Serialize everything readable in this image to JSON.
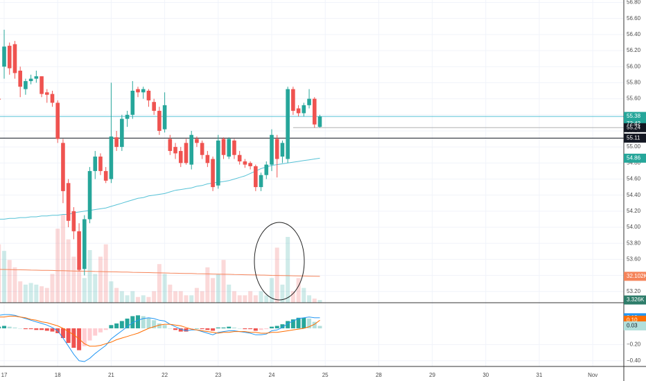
{
  "chart_data": [
    {
      "type": "candlestick",
      "xlim": [
        0,
        117
      ],
      "xticks": [
        {
          "value": 1,
          "label": "17"
        },
        {
          "value": 11,
          "label": "18"
        },
        {
          "value": 21,
          "label": "21"
        },
        {
          "value": 31,
          "label": "22"
        },
        {
          "value": 41,
          "label": "23"
        },
        {
          "value": 51,
          "label": "24"
        },
        {
          "value": 61,
          "label": "25"
        },
        {
          "value": 71,
          "label": "28"
        },
        {
          "value": 81,
          "label": "29"
        },
        {
          "value": 91,
          "label": "30"
        },
        {
          "value": 101,
          "label": "31"
        },
        {
          "value": 111,
          "label": "Nov"
        }
      ],
      "ylim": [
        53.06,
        56.83
      ],
      "yticks": [
        {
          "value": 56.8,
          "label": "56.80"
        },
        {
          "value": 56.6,
          "label": "56.60"
        },
        {
          "value": 56.4,
          "label": "56.40"
        },
        {
          "value": 56.2,
          "label": "56.20"
        },
        {
          "value": 56,
          "label": "56.00"
        },
        {
          "value": 55.8,
          "label": "55.80"
        },
        {
          "value": 55.6,
          "label": "55.60"
        },
        {
          "value": 55.4,
          "label": "55.40"
        },
        {
          "value": 55.2,
          "label": "55.20"
        },
        {
          "value": 55,
          "label": "55.00"
        },
        {
          "value": 54.8,
          "label": "54.80"
        },
        {
          "value": 54.6,
          "label": "54.60"
        },
        {
          "value": 54.4,
          "label": "54.40"
        },
        {
          "value": 54.2,
          "label": "54.20"
        },
        {
          "value": 54,
          "label": "54.00"
        },
        {
          "value": 53.8,
          "label": "53.80"
        },
        {
          "value": 53.6,
          "label": "53.60"
        },
        {
          "value": 53.4,
          "label": "53.40"
        },
        {
          "value": 53.2,
          "label": "53.20"
        }
      ],
      "grid": true,
      "up_color": "#26a69a",
      "down_color": "#ef5350",
      "open": [
        55.6,
        56.0,
        56.26,
        56.28,
        55.95,
        55.72,
        55.82,
        55.85,
        55.88,
        55.68,
        55.66,
        55.55,
        55.05,
        54.55,
        54.2,
        53.95,
        53.48,
        54.1,
        54.7,
        54.88,
        54.7,
        54.6,
        55.12,
        55.0,
        55.35,
        55.4,
        55.72,
        55.68,
        55.7,
        55.56,
        55.45,
        55.22,
        55.1,
        55.0,
        54.95,
        55.05,
        54.78,
        55.1,
        55.05,
        54.9,
        54.85,
        54.52,
        55.1,
        54.88,
        55.08,
        54.9,
        54.82,
        54.8,
        54.76,
        54.5,
        54.65,
        54.78,
        55.1,
        54.88,
        54.85,
        55.72,
        55.48,
        55.42,
        55.52,
        55.6,
        55.25
      ],
      "high": [
        55.62,
        56.46,
        56.3,
        56.32,
        56.0,
        55.85,
        55.9,
        55.95,
        55.88,
        55.72,
        55.7,
        55.58,
        55.1,
        54.6,
        54.25,
        54.05,
        54.15,
        54.75,
        54.95,
        54.92,
        54.75,
        55.8,
        55.2,
        55.4,
        55.45,
        55.82,
        55.75,
        55.75,
        55.72,
        55.6,
        55.5,
        55.68,
        55.15,
        55.05,
        55.0,
        55.1,
        55.2,
        55.13,
        55.08,
        54.95,
        54.88,
        55.15,
        55.12,
        55.12,
        55.1,
        54.95,
        54.85,
        54.82,
        54.78,
        54.68,
        54.82,
        55.22,
        55.15,
        55.08,
        55.75,
        55.75,
        55.52,
        55.55,
        55.72,
        55.62,
        55.4
      ],
      "low": [
        55.58,
        55.85,
        55.9,
        55.85,
        55.62,
        55.65,
        55.78,
        55.8,
        55.62,
        55.55,
        55.5,
        55.05,
        54.3,
        54.0,
        53.85,
        53.45,
        53.4,
        54.05,
        54.6,
        54.65,
        54.55,
        54.55,
        54.95,
        54.95,
        55.25,
        55.35,
        55.62,
        55.6,
        55.5,
        55.4,
        55.15,
        55.18,
        54.9,
        54.85,
        54.75,
        54.78,
        54.72,
        55.0,
        54.85,
        54.75,
        54.45,
        54.48,
        54.85,
        54.85,
        54.85,
        54.78,
        54.74,
        54.72,
        54.45,
        54.45,
        54.6,
        54.7,
        54.62,
        54.8,
        54.8,
        55.4,
        55.38,
        55.38,
        55.48,
        55.24,
        55.24
      ],
      "close": [
        55.59,
        56.25,
        55.98,
        55.92,
        55.75,
        55.82,
        55.85,
        55.88,
        55.66,
        55.65,
        55.55,
        55.1,
        54.45,
        54.08,
        53.95,
        53.47,
        54.1,
        54.7,
        54.88,
        54.7,
        54.58,
        55.13,
        55.0,
        55.35,
        55.4,
        55.7,
        55.68,
        55.72,
        55.58,
        55.45,
        55.2,
        55.52,
        54.95,
        54.92,
        54.8,
        54.8,
        55.15,
        55.05,
        54.9,
        54.8,
        54.5,
        55.08,
        54.9,
        55.1,
        54.9,
        54.82,
        54.78,
        54.76,
        54.5,
        54.65,
        54.78,
        55.15,
        54.85,
        55.05,
        55.72,
        55.45,
        55.42,
        55.52,
        55.6,
        55.28,
        55.38
      ],
      "ma": {
        "color": "#56c2d6",
        "values": [
          54.1,
          54.1,
          54.11,
          54.11,
          54.12,
          54.12,
          54.13,
          54.13,
          54.14,
          54.14,
          54.15,
          54.15,
          54.16,
          54.16,
          54.18,
          54.19,
          54.2,
          54.21,
          54.22,
          54.23,
          54.24,
          54.26,
          54.28,
          54.3,
          54.32,
          54.34,
          54.36,
          54.37,
          54.39,
          54.4,
          54.41,
          54.42,
          54.44,
          54.46,
          54.47,
          54.48,
          54.49,
          54.51,
          54.52,
          54.54,
          54.55,
          54.56,
          54.57,
          54.58,
          54.6,
          54.62,
          54.64,
          54.67,
          54.7,
          54.73,
          54.75,
          54.77,
          54.78,
          54.79,
          54.8,
          54.81,
          54.82,
          54.83,
          54.84,
          54.85,
          54.86
        ]
      },
      "price_lines": [
        {
          "value": 55.38,
          "color": "#56c2d6"
        },
        {
          "value": 55.24,
          "color": "#b0b0b0"
        },
        {
          "value": 55.11,
          "color": "#131722"
        }
      ],
      "badges": [
        {
          "value": 55.38,
          "label": "55.38",
          "color": "#26a69a"
        },
        {
          "value": 55.11,
          "label": "55.11",
          "color": "#131722"
        },
        {
          "value": 55.24,
          "label": "55.24",
          "color": "#131722"
        },
        {
          "value": 54.86,
          "label": "54.86",
          "color": "#26a69a"
        }
      ],
      "countdown": "72:42",
      "volume": {
        "ylim": [
          0,
          368
        ],
        "values": [
          71,
          63,
          52,
          43,
          26,
          22,
          24,
          22,
          20,
          18,
          35,
          90,
          107,
          77,
          56,
          43,
          30,
          64,
          35,
          56,
          71,
          26,
          18,
          14,
          9,
          14,
          7,
          9,
          7,
          14,
          47,
          35,
          22,
          14,
          14,
          9,
          9,
          18,
          14,
          43,
          30,
          35,
          52,
          22,
          14,
          9,
          9,
          14,
          9,
          14,
          9,
          30,
          67,
          22,
          80,
          14,
          30,
          18,
          9,
          5,
          3.326
        ],
        "ma": {
          "color": "#f5845a",
          "values": [
            40.6,
            40.4,
            40.3,
            40.1,
            40.0,
            39.9,
            39.7,
            39.6,
            39.4,
            39.3,
            39.2,
            39.0,
            38.9,
            38.7,
            38.6,
            38.4,
            38.3,
            38.2,
            38.0,
            37.9,
            37.7,
            37.6,
            37.5,
            37.3,
            37.2,
            37.0,
            36.9,
            36.7,
            36.6,
            36.5,
            36.3,
            36.2,
            36.0,
            35.9,
            35.7,
            35.6,
            35.5,
            35.3,
            35.2,
            35.0,
            34.9,
            34.7,
            34.6,
            34.5,
            34.3,
            34.2,
            34.0,
            33.9,
            33.8,
            33.6,
            33.5,
            33.3,
            33.2,
            33.0,
            32.9,
            32.8,
            32.6,
            32.5,
            32.3,
            32.2,
            32.102
          ]
        },
        "badges": [
          {
            "value": 32.102,
            "label": "32.102K",
            "color": "#f5845a"
          },
          {
            "value": 3.326,
            "label": "3.326K",
            "color": "#2e7d6a"
          }
        ]
      }
    },
    {
      "type": "macd",
      "ylim": [
        -0.47,
        0.29
      ],
      "yticks": [
        {
          "value": -0.2,
          "label": "−0.20"
        },
        {
          "value": -0.4,
          "label": "−0.40"
        }
      ],
      "histogram": [
        0.02,
        0.03,
        0.02,
        0.01,
        0.0,
        -0.01,
        -0.01,
        -0.02,
        -0.02,
        -0.03,
        -0.04,
        -0.06,
        -0.12,
        -0.18,
        -0.24,
        -0.27,
        -0.22,
        -0.15,
        -0.09,
        -0.05,
        -0.02,
        0.04,
        0.06,
        0.09,
        0.12,
        0.15,
        0.16,
        0.15,
        0.13,
        0.1,
        0.06,
        0.04,
        0.0,
        -0.02,
        -0.04,
        -0.04,
        -0.01,
        0.0,
        -0.01,
        -0.02,
        -0.03,
        0.01,
        0.01,
        0.02,
        0.01,
        0.0,
        -0.01,
        -0.01,
        -0.03,
        -0.02,
        -0.01,
        0.02,
        0.03,
        0.05,
        0.09,
        0.11,
        0.13,
        0.13,
        0.12,
        0.08,
        0.03
      ],
      "histogram_colors": {
        "up_strong": "#26a69a",
        "up_weak": "#b2dfdb",
        "down_strong": "#ef5350",
        "down_weak": "#ffcdd2"
      },
      "macd": {
        "color": "#2196f3",
        "values": [
          0.16,
          0.17,
          0.17,
          0.16,
          0.14,
          0.12,
          0.1,
          0.08,
          0.06,
          0.04,
          0.01,
          -0.03,
          -0.12,
          -0.22,
          -0.32,
          -0.4,
          -0.41,
          -0.37,
          -0.31,
          -0.26,
          -0.21,
          -0.13,
          -0.08,
          -0.03,
          0.02,
          0.07,
          0.1,
          0.12,
          0.13,
          0.12,
          0.1,
          0.09,
          0.05,
          0.02,
          -0.01,
          -0.03,
          -0.02,
          -0.02,
          -0.04,
          -0.06,
          -0.08,
          -0.05,
          -0.04,
          -0.03,
          -0.03,
          -0.04,
          -0.05,
          -0.06,
          -0.08,
          -0.08,
          -0.07,
          -0.03,
          -0.02,
          0.01,
          0.06,
          0.09,
          0.12,
          0.13,
          0.14,
          0.13,
          0.13
        ]
      },
      "signal": {
        "color": "#ff6d00",
        "values": [
          0.14,
          0.14,
          0.15,
          0.15,
          0.14,
          0.13,
          0.11,
          0.1,
          0.08,
          0.07,
          0.05,
          0.03,
          0.0,
          -0.04,
          -0.08,
          -0.13,
          -0.19,
          -0.22,
          -0.22,
          -0.21,
          -0.19,
          -0.17,
          -0.14,
          -0.12,
          -0.1,
          -0.08,
          -0.06,
          -0.03,
          0.0,
          0.02,
          0.04,
          0.05,
          0.05,
          0.04,
          0.03,
          0.01,
          -0.01,
          -0.02,
          -0.03,
          -0.04,
          -0.05,
          -0.06,
          -0.05,
          -0.05,
          -0.04,
          -0.04,
          -0.04,
          -0.05,
          -0.05,
          -0.06,
          -0.06,
          -0.05,
          -0.05,
          -0.04,
          -0.03,
          -0.02,
          -0.01,
          0.0,
          0.02,
          0.05,
          0.1
        ]
      },
      "badges": [
        {
          "value": 0.13,
          "label": "0.13",
          "color": "#2196f3"
        },
        {
          "value": 0.1,
          "label": "0.10",
          "color": "#ff6d00"
        },
        {
          "value": 0.03,
          "label": "0.03",
          "color": "#b2dfdb",
          "text_color": "#131722"
        }
      ]
    }
  ]
}
